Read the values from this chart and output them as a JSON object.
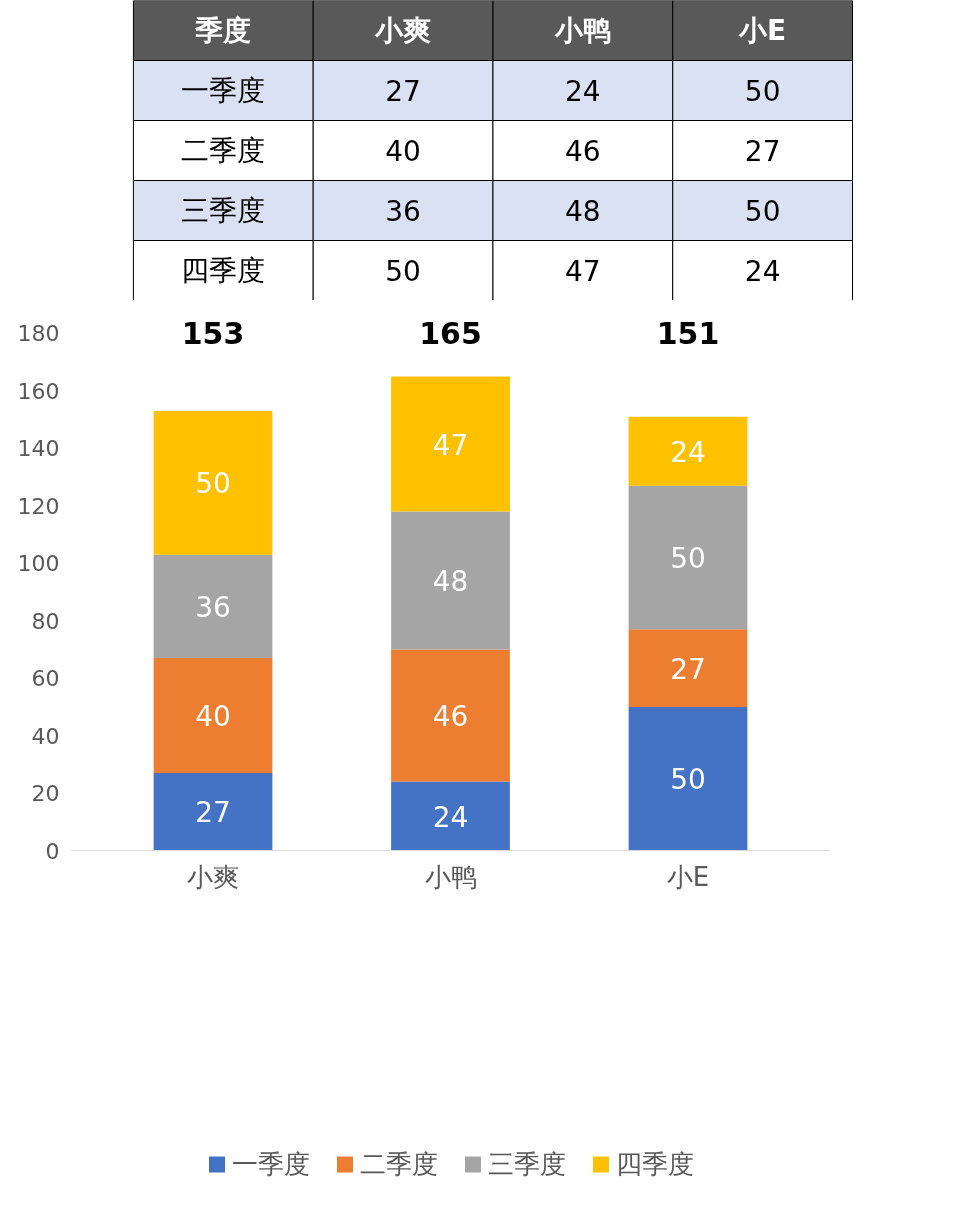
{
  "chart_data": [
    {
      "type": "other",
      "annotations": [
        "季度",
        "小爽",
        "小鸭",
        "小E",
        "一季度",
        "27",
        "24",
        "50",
        "二季度",
        "40",
        "46",
        "27",
        "三季度",
        "36",
        "48",
        "50",
        "四季度",
        "50",
        "47",
        "24"
      ]
    },
    {
      "type": "bar",
      "stacked": true,
      "categories": [
        "小爽",
        "小鸭",
        "小E"
      ],
      "series": [
        {
          "name": "一季度",
          "color": "#4472c4",
          "values": [
            27,
            24,
            50
          ]
        },
        {
          "name": "二季度",
          "color": "#ed7d31",
          "values": [
            40,
            46,
            27
          ]
        },
        {
          "name": "三季度",
          "color": "#a5a5a5",
          "values": [
            36,
            48,
            50
          ]
        },
        {
          "name": "四季度",
          "color": "#ffc000",
          "values": [
            50,
            47,
            24
          ]
        }
      ],
      "totals": [
        "153",
        "165",
        "151"
      ],
      "data_labels": true,
      "ylim": [
        0,
        180
      ],
      "yticks": [
        0,
        20,
        40,
        60,
        80,
        100,
        120,
        140,
        160,
        180
      ],
      "grid": false,
      "legend": "bottom"
    }
  ]
}
